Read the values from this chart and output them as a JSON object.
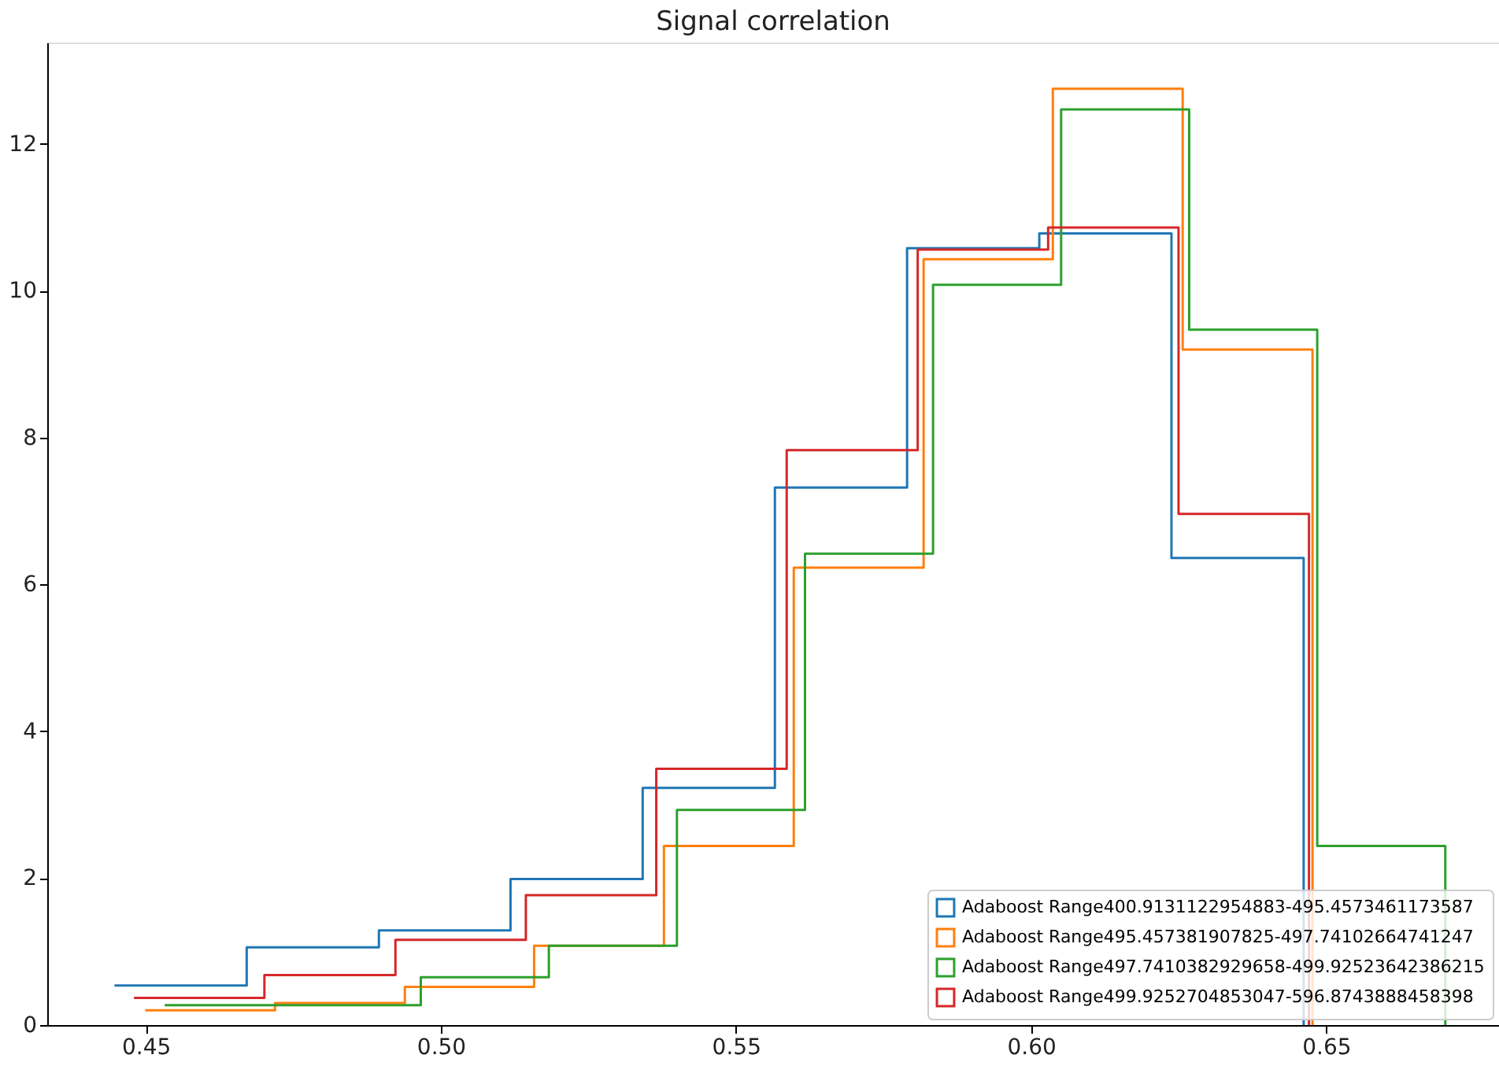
{
  "chart_data": {
    "type": "step",
    "title": "Signal correlation",
    "xlim": [
      0.4333,
      0.6793
    ],
    "xticks": [
      0.45,
      {
        "value": 0.5,
        "label": "0.50"
      },
      0.55,
      {
        "value": 0.6,
        "label": "0.60"
      },
      0.65
    ],
    "ylim": [
      0,
      13.38
    ],
    "yticks": [
      0,
      2,
      4,
      6,
      8,
      10,
      12
    ],
    "grid": false,
    "legend": "bottom right",
    "series": [
      {
        "name": "Adaboost Range400.9131122954883-495.4573461173587",
        "color": "#1f77b4",
        "x": [
          0.4447,
          0.4671,
          0.4895,
          0.5118,
          0.5342,
          0.5566,
          0.579,
          0.6014,
          0.6238,
          0.6462
        ],
        "values": [
          0.54,
          1.06,
          1.29,
          1.99,
          3.23,
          7.32,
          10.58,
          10.78,
          6.36,
          0
        ]
      },
      {
        "name": "Adaboost Range495.457381907825-497.74102664741247",
        "color": "#ff7f0e",
        "x": [
          0.4499,
          0.4719,
          0.4939,
          0.5158,
          0.5378,
          0.5598,
          0.5818,
          0.6037,
          0.6257,
          0.6477
        ],
        "values": [
          0.2,
          0.3,
          0.52,
          1.08,
          2.44,
          6.23,
          10.43,
          12.75,
          9.2,
          0
        ]
      },
      {
        "name": "Adaboost Range497.7410382929658-499.92523642386215",
        "color": "#2ca02c",
        "x": [
          0.4532,
          0.4749,
          0.4966,
          0.5183,
          0.54,
          0.5617,
          0.5834,
          0.6051,
          0.6268,
          0.6485,
          0.6702
        ],
        "values": [
          0.27,
          0.27,
          0.65,
          1.08,
          2.93,
          6.42,
          10.08,
          12.47,
          9.47,
          2.44,
          0
        ]
      },
      {
        "name": "Adaboost Range499.9252704853047-596.8743888458398",
        "color": "#d62728",
        "x": [
          0.448,
          0.4701,
          0.4923,
          0.5144,
          0.5365,
          0.5586,
          0.5808,
          0.6029,
          0.625,
          0.6471
        ],
        "values": [
          0.37,
          0.68,
          1.16,
          1.77,
          3.49,
          7.83,
          10.56,
          10.86,
          6.96,
          0
        ]
      }
    ]
  }
}
